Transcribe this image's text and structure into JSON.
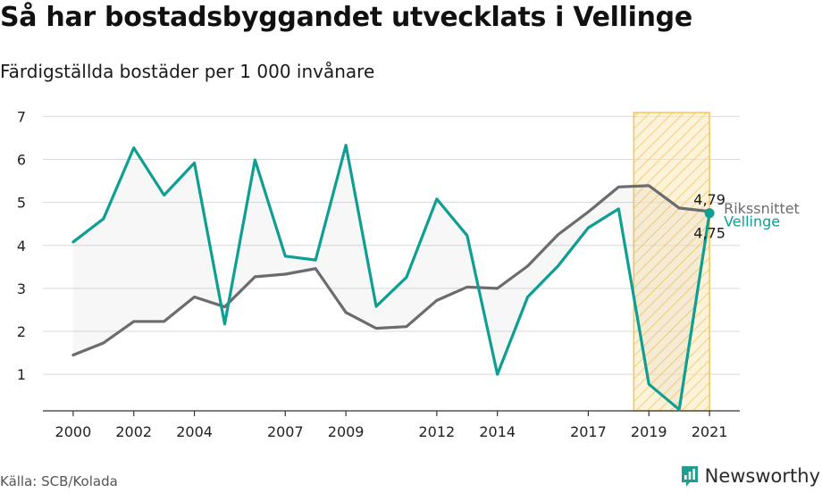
{
  "title": "Så har bostadsbyggandet utvecklats i Vellinge",
  "subtitle": "Färdigställda bostäder per 1 000 invånare",
  "source": "Källa: SCB/Kolada",
  "brand": "Newsworthy",
  "colors": {
    "vellinge": "#0e9f92",
    "riket": "#6b6b70",
    "highlight_fill": "#fbe9bd",
    "highlight_stroke": "#f1c75a",
    "grid": "#d9d9d9",
    "brand_icon": "#1f9e90"
  },
  "chart_data": {
    "type": "line",
    "x": [
      2000,
      2001,
      2002,
      2003,
      2004,
      2005,
      2006,
      2007,
      2008,
      2009,
      2010,
      2011,
      2012,
      2013,
      2014,
      2015,
      2016,
      2017,
      2018,
      2019,
      2020,
      2021
    ],
    "x_tick_labels": [
      "2000",
      "2002",
      "2004",
      "2007",
      "2009",
      "2012",
      "2014",
      "2017",
      "2019",
      "2021"
    ],
    "y_ticks": [
      1,
      2,
      3,
      4,
      5,
      6,
      7
    ],
    "ylim": [
      0.15,
      7.3
    ],
    "xlim": [
      1999.0,
      2022.0
    ],
    "grid": true,
    "highlight_range": [
      2018.5,
      2021
    ],
    "series": [
      {
        "name": "Vellinge",
        "key": "vellinge",
        "values": [
          4.08,
          4.62,
          6.27,
          5.17,
          5.92,
          2.17,
          5.99,
          3.75,
          3.66,
          6.33,
          2.58,
          3.26,
          5.08,
          4.23,
          1.0,
          2.8,
          3.52,
          4.41,
          4.85,
          0.77,
          0.18,
          4.75
        ]
      },
      {
        "name": "Rikssnittet",
        "key": "riket",
        "values": [
          1.45,
          1.73,
          2.23,
          2.23,
          2.8,
          2.57,
          3.27,
          3.33,
          3.46,
          2.44,
          2.07,
          2.11,
          2.72,
          3.03,
          3.0,
          3.52,
          4.25,
          4.78,
          5.36,
          5.39,
          4.87,
          4.79
        ]
      }
    ],
    "annotations": {
      "last_riket": "4,79",
      "last_vellinge": "4,75"
    }
  }
}
